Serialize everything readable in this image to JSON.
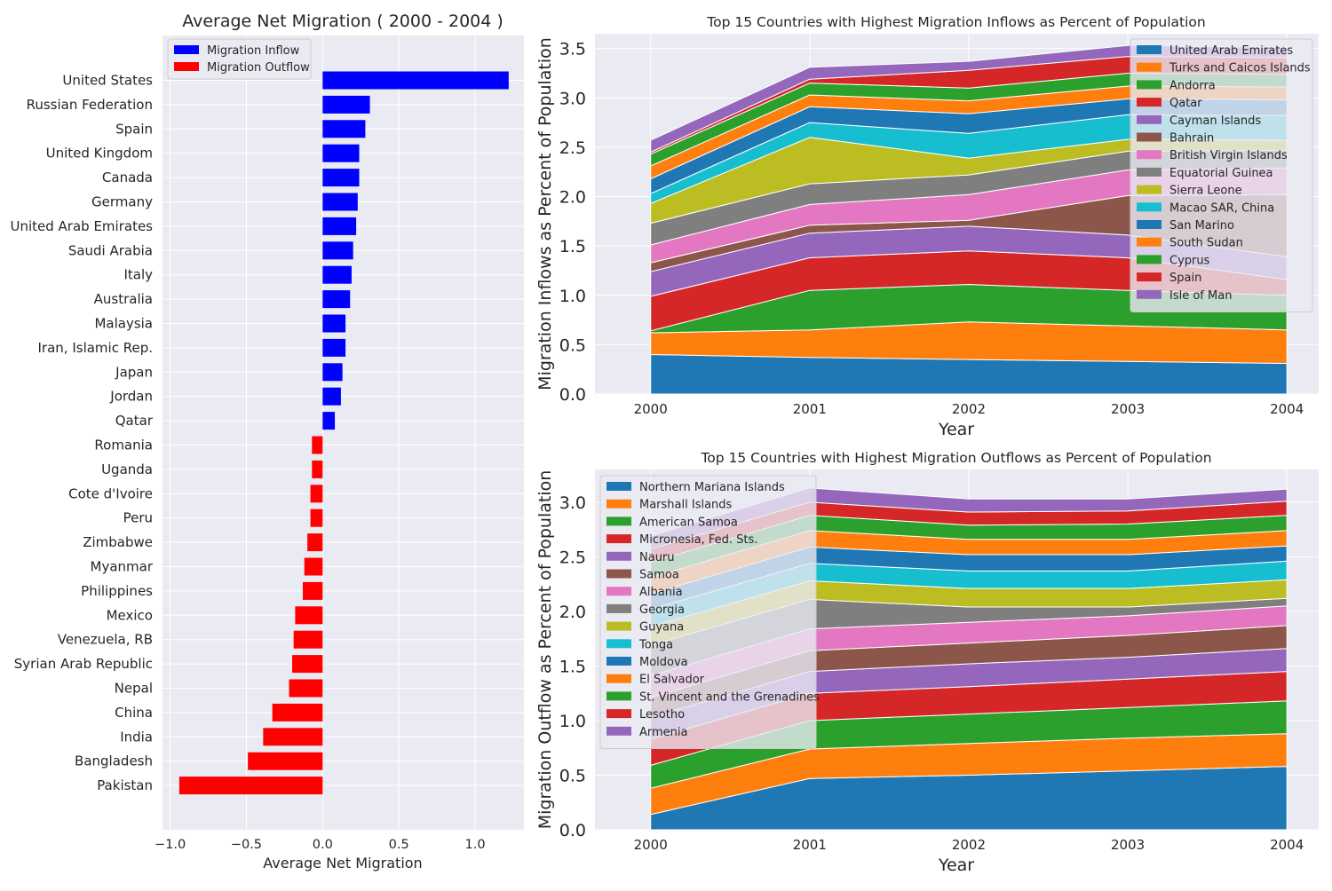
{
  "charts": {
    "bar": {
      "chart_data": {
        "type": "bar",
        "orientation": "horizontal",
        "title": "Average Net Migration ( 2000 - 2004 )",
        "xlabel": "Average Net Migration",
        "ylabel": "",
        "xlim": [
          -1.05,
          1.32
        ],
        "xticks": [
          -1.0,
          -0.5,
          0.0,
          0.5,
          1.0
        ],
        "xtick_labels": [
          "−1.0",
          "−0.5",
          "0.0",
          "0.5",
          "1.0"
        ],
        "grid": true,
        "legend_position": "top-left",
        "legend": [
          {
            "label": "Migration Inflow",
            "color": "#0000ff"
          },
          {
            "label": "Migration Outflow",
            "color": "#ff0000"
          }
        ],
        "categories": [
          "United States",
          "Russian Federation",
          "Spain",
          "United Kingdom",
          "Canada",
          "Germany",
          "United Arab Emirates",
          "Saudi Arabia",
          "Italy",
          "Australia",
          "Malaysia",
          "Iran, Islamic Rep.",
          "Japan",
          "Jordan",
          "Qatar",
          "Romania",
          "Uganda",
          "Cote d'Ivoire",
          "Peru",
          "Zimbabwe",
          "Myanmar",
          "Philippines",
          "Mexico",
          "Venezuela, RB",
          "Syrian Arab Republic",
          "Nepal",
          "China",
          "India",
          "Bangladesh",
          "Pakistan"
        ],
        "values": [
          1.22,
          0.31,
          0.28,
          0.24,
          0.24,
          0.23,
          0.22,
          0.2,
          0.19,
          0.18,
          0.15,
          0.15,
          0.13,
          0.12,
          0.08,
          -0.07,
          -0.07,
          -0.08,
          -0.08,
          -0.1,
          -0.12,
          -0.13,
          -0.18,
          -0.19,
          -0.2,
          -0.22,
          -0.33,
          -0.39,
          -0.49,
          -0.94
        ]
      }
    },
    "inflow": {
      "chart_data": {
        "type": "area",
        "stacked": true,
        "title": "Top 15 Countries with Highest Migration Inflows as Percent of Population",
        "xlabel": "Year",
        "ylabel": "Migration Inflows as Percent of Population",
        "x": [
          2000,
          2001,
          2002,
          2003,
          2004
        ],
        "xtick_labels": [
          "2000",
          "2001",
          "2002",
          "2003",
          "2004"
        ],
        "xlim": [
          1999.65,
          2004.2
        ],
        "ylim": [
          0,
          3.65
        ],
        "yticks": [
          0.0,
          0.5,
          1.0,
          1.5,
          2.0,
          2.5,
          3.0,
          3.5
        ],
        "ytick_labels": [
          "0.0",
          "0.5",
          "1.0",
          "1.5",
          "2.0",
          "2.5",
          "3.0",
          "3.5"
        ],
        "grid": true,
        "legend_position": "top-right",
        "series": [
          {
            "name": "United Arab Emirates",
            "color": "#1f77b4",
            "values": [
              0.4,
              0.37,
              0.35,
              0.33,
              0.31
            ]
          },
          {
            "name": "Turks and Caicos Islands",
            "color": "#ff7f0e",
            "values": [
              0.22,
              0.28,
              0.38,
              0.36,
              0.34
            ]
          },
          {
            "name": "Andorra",
            "color": "#2ca02c",
            "values": [
              0.02,
              0.4,
              0.38,
              0.36,
              0.35
            ]
          },
          {
            "name": "Qatar",
            "color": "#d62728",
            "values": [
              0.35,
              0.33,
              0.34,
              0.33,
              0.16
            ]
          },
          {
            "name": "Cayman Islands",
            "color": "#9467bd",
            "values": [
              0.25,
              0.25,
              0.25,
              0.23,
              0.23
            ]
          },
          {
            "name": "Bahrain",
            "color": "#8c564b",
            "values": [
              0.09,
              0.08,
              0.06,
              0.4,
              0.63
            ]
          },
          {
            "name": "British Virgin Islands",
            "color": "#e377c2",
            "values": [
              0.18,
              0.21,
              0.26,
              0.26,
              0.27
            ]
          },
          {
            "name": "Equatorial Guinea",
            "color": "#7f7f7f",
            "values": [
              0.22,
              0.21,
              0.2,
              0.19,
              0.18
            ]
          },
          {
            "name": "Sierra Leone",
            "color": "#bcbd22",
            "values": [
              0.2,
              0.47,
              0.17,
              0.12,
              0.1
            ]
          },
          {
            "name": "Macao SAR, China",
            "color": "#17becf",
            "values": [
              0.1,
              0.15,
              0.25,
              0.25,
              0.25
            ]
          },
          {
            "name": "San Marino",
            "color": "#1f77b4",
            "values": [
              0.15,
              0.16,
              0.2,
              0.16,
              0.16
            ]
          },
          {
            "name": "South Sudan",
            "color": "#ff7f0e",
            "values": [
              0.13,
              0.12,
              0.13,
              0.13,
              0.13
            ]
          },
          {
            "name": "Cyprus",
            "color": "#2ca02c",
            "values": [
              0.12,
              0.12,
              0.13,
              0.13,
              0.13
            ]
          },
          {
            "name": "Spain",
            "color": "#d62728",
            "values": [
              0.02,
              0.04,
              0.18,
              0.17,
              0.17
            ]
          },
          {
            "name": "Isle of Man",
            "color": "#9467bd",
            "values": [
              0.12,
              0.12,
              0.09,
              0.11,
              0.1
            ]
          }
        ]
      }
    },
    "outflow": {
      "chart_data": {
        "type": "area",
        "stacked": true,
        "title": "Top 15 Countries with Highest Migration Outflows as Percent of Population",
        "xlabel": "Year",
        "ylabel": "Migration Outflow as Percent of Population",
        "x": [
          2000,
          2001,
          2002,
          2003,
          2004
        ],
        "xtick_labels": [
          "2000",
          "2001",
          "2002",
          "2003",
          "2004"
        ],
        "xlim": [
          1999.65,
          2004.2
        ],
        "ylim": [
          0,
          3.3
        ],
        "yticks": [
          0.0,
          0.5,
          1.0,
          1.5,
          2.0,
          2.5,
          3.0
        ],
        "ytick_labels": [
          "0.0",
          "0.5",
          "1.0",
          "1.5",
          "2.0",
          "2.5",
          "3.0"
        ],
        "grid": true,
        "legend_position": "top-left",
        "series": [
          {
            "name": "Northern Mariana Islands",
            "color": "#1f77b4",
            "values": [
              0.14,
              0.47,
              0.5,
              0.54,
              0.58
            ]
          },
          {
            "name": "Marshall Islands",
            "color": "#ff7f0e",
            "values": [
              0.24,
              0.27,
              0.29,
              0.3,
              0.3
            ]
          },
          {
            "name": "American Samoa",
            "color": "#2ca02c",
            "values": [
              0.21,
              0.26,
              0.27,
              0.28,
              0.3
            ]
          },
          {
            "name": "Micronesia, Fed. Sts.",
            "color": "#d62728",
            "values": [
              0.24,
              0.25,
              0.25,
              0.26,
              0.27
            ]
          },
          {
            "name": "Nauru",
            "color": "#9467bd",
            "values": [
              0.2,
              0.2,
              0.21,
              0.2,
              0.21
            ]
          },
          {
            "name": "Samoa",
            "color": "#8c564b",
            "values": [
              0.18,
              0.19,
              0.19,
              0.2,
              0.21
            ]
          },
          {
            "name": "Albania",
            "color": "#e377c2",
            "values": [
              0.2,
              0.2,
              0.19,
              0.18,
              0.18
            ]
          },
          {
            "name": "Georgia",
            "color": "#7f7f7f",
            "values": [
              0.28,
              0.27,
              0.14,
              0.08,
              0.07
            ]
          },
          {
            "name": "Guyana",
            "color": "#bcbd22",
            "values": [
              0.17,
              0.17,
              0.17,
              0.17,
              0.17
            ]
          },
          {
            "name": "Tonga",
            "color": "#17becf",
            "values": [
              0.16,
              0.16,
              0.16,
              0.16,
              0.17
            ]
          },
          {
            "name": "Moldova",
            "color": "#1f77b4",
            "values": [
              0.14,
              0.15,
              0.15,
              0.15,
              0.14
            ]
          },
          {
            "name": "El Salvador",
            "color": "#ff7f0e",
            "values": [
              0.15,
              0.15,
              0.14,
              0.14,
              0.14
            ]
          },
          {
            "name": "St. Vincent and the Grenadines",
            "color": "#2ca02c",
            "values": [
              0.14,
              0.14,
              0.13,
              0.14,
              0.14
            ]
          },
          {
            "name": "Lesotho",
            "color": "#d62728",
            "values": [
              0.12,
              0.12,
              0.12,
              0.12,
              0.13
            ]
          },
          {
            "name": "Armenia",
            "color": "#9467bd",
            "values": [
              0.12,
              0.13,
              0.12,
              0.11,
              0.11
            ]
          }
        ]
      }
    }
  }
}
